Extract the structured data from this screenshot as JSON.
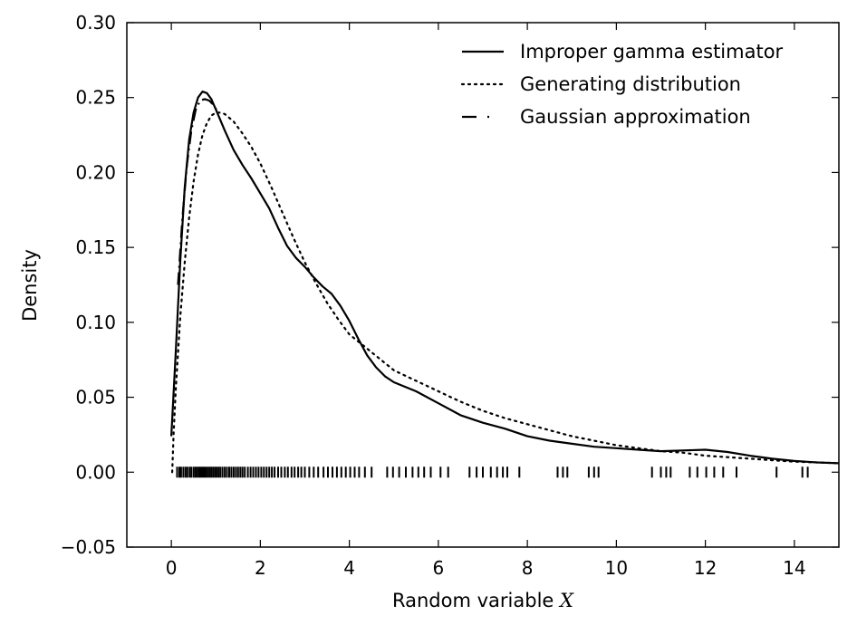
{
  "chart_data": {
    "type": "line",
    "xlabel": "Random variable",
    "xlabel_symbol": "X",
    "ylabel": "Density",
    "xlim": [
      -1,
      15
    ],
    "ylim": [
      -0.05,
      0.3
    ],
    "x_ticks": [
      0,
      2,
      4,
      6,
      8,
      10,
      12,
      14
    ],
    "x_tick_labels": [
      "0",
      "2",
      "4",
      "6",
      "8",
      "10",
      "12",
      "14"
    ],
    "y_ticks": [
      -0.05,
      0.0,
      0.05,
      0.1,
      0.15,
      0.2,
      0.25,
      0.3
    ],
    "y_tick_labels": [
      "−0.05",
      "0.00",
      "0.05",
      "0.10",
      "0.15",
      "0.20",
      "0.25",
      "0.30"
    ],
    "grid": false,
    "legend_position": "top-right",
    "series": [
      {
        "name": "Improper gamma estimator",
        "style": "solid",
        "x": [
          0.0,
          0.1,
          0.2,
          0.3,
          0.4,
          0.5,
          0.6,
          0.7,
          0.8,
          0.9,
          1.0,
          1.2,
          1.4,
          1.6,
          1.8,
          2.0,
          2.2,
          2.4,
          2.6,
          2.8,
          3.0,
          3.2,
          3.4,
          3.6,
          3.8,
          4.0,
          4.2,
          4.4,
          4.6,
          4.8,
          5.0,
          5.5,
          6.0,
          6.5,
          7.0,
          7.5,
          8.0,
          8.5,
          9.0,
          9.5,
          10.0,
          10.5,
          11.0,
          11.5,
          12.0,
          12.5,
          13.0,
          13.5,
          14.0,
          14.5,
          15.0
        ],
        "y": [
          0.024,
          0.08,
          0.14,
          0.19,
          0.222,
          0.24,
          0.25,
          0.254,
          0.253,
          0.249,
          0.242,
          0.228,
          0.215,
          0.205,
          0.196,
          0.186,
          0.176,
          0.163,
          0.151,
          0.143,
          0.137,
          0.13,
          0.124,
          0.119,
          0.111,
          0.101,
          0.089,
          0.078,
          0.07,
          0.064,
          0.06,
          0.054,
          0.046,
          0.038,
          0.033,
          0.029,
          0.024,
          0.021,
          0.019,
          0.017,
          0.016,
          0.015,
          0.014,
          0.0145,
          0.015,
          0.0135,
          0.011,
          0.009,
          0.0075,
          0.0065,
          0.006
        ]
      },
      {
        "name": "Generating distribution",
        "style": "dotted",
        "x": [
          0.02,
          0.05,
          0.1,
          0.2,
          0.3,
          0.4,
          0.5,
          0.6,
          0.7,
          0.8,
          0.9,
          1.0,
          1.1,
          1.2,
          1.4,
          1.6,
          1.8,
          2.0,
          2.25,
          2.5,
          2.75,
          3.0,
          3.25,
          3.5,
          3.75,
          4.0,
          4.5,
          5.0,
          5.5,
          6.0,
          6.5,
          7.0,
          7.5,
          8.0,
          8.5,
          9.0,
          9.5,
          10.0,
          10.5,
          11.0,
          11.5,
          12.0,
          12.5,
          13.0,
          13.5,
          14.0,
          14.5,
          15.0
        ],
        "y": [
          0.0,
          0.025,
          0.055,
          0.103,
          0.14,
          0.17,
          0.194,
          0.212,
          0.225,
          0.233,
          0.238,
          0.24,
          0.24,
          0.239,
          0.234,
          0.226,
          0.217,
          0.206,
          0.19,
          0.173,
          0.156,
          0.14,
          0.126,
          0.113,
          0.102,
          0.092,
          0.08,
          0.068,
          0.061,
          0.054,
          0.047,
          0.041,
          0.036,
          0.032,
          0.028,
          0.024,
          0.021,
          0.018,
          0.016,
          0.014,
          0.013,
          0.011,
          0.01,
          0.009,
          0.008,
          0.007,
          0.0065,
          0.006
        ]
      },
      {
        "name": "Gaussian approximation",
        "style": "dashdot",
        "x": [
          0.15,
          0.25,
          0.35,
          0.45,
          0.55,
          0.65,
          0.75,
          0.85,
          0.95,
          1.05
        ],
        "y": [
          0.125,
          0.17,
          0.205,
          0.228,
          0.242,
          0.248,
          0.249,
          0.248,
          0.245,
          0.24
        ]
      }
    ],
    "rug": [
      0.13,
      0.18,
      0.22,
      0.27,
      0.32,
      0.36,
      0.41,
      0.45,
      0.5,
      0.54,
      0.58,
      0.62,
      0.66,
      0.7,
      0.74,
      0.78,
      0.82,
      0.86,
      0.9,
      0.94,
      0.98,
      1.02,
      1.06,
      1.1,
      1.15,
      1.2,
      1.25,
      1.3,
      1.35,
      1.4,
      1.45,
      1.5,
      1.55,
      1.6,
      1.65,
      1.72,
      1.78,
      1.84,
      1.9,
      1.96,
      2.02,
      2.08,
      2.14,
      2.2,
      2.26,
      2.32,
      2.4,
      2.47,
      2.55,
      2.62,
      2.7,
      2.77,
      2.85,
      2.92,
      3.0,
      3.1,
      3.2,
      3.3,
      3.42,
      3.52,
      3.62,
      3.72,
      3.82,
      3.92,
      4.02,
      4.12,
      4.22,
      4.35,
      4.5,
      4.85,
      4.98,
      5.12,
      5.27,
      5.42,
      5.55,
      5.68,
      5.83,
      6.05,
      6.22,
      6.7,
      6.86,
      7.0,
      7.18,
      7.32,
      7.45,
      7.55,
      7.82,
      8.68,
      8.8,
      8.9,
      9.38,
      9.5,
      9.6,
      10.8,
      11.0,
      11.12,
      11.22,
      11.65,
      11.82,
      12.02,
      12.2,
      12.4,
      12.7,
      13.6,
      14.18,
      14.3
    ]
  }
}
